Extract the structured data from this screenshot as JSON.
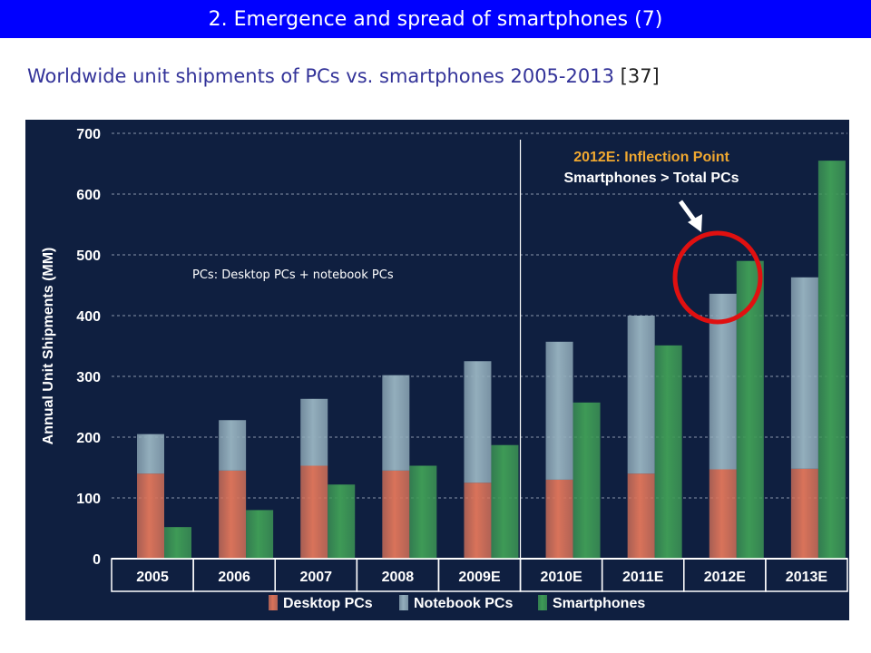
{
  "slide": {
    "title": "2. Emergence and spread of smartphones (7)",
    "subtitle": "Worldwide unit shipments of PCs vs. smartphones 2005-2013",
    "reference": "[37]"
  },
  "colors": {
    "title_bar": "#0000ff",
    "subtitle_text": "#333399",
    "chart_background": "#0f1f40",
    "desktop": "#d9735a",
    "notebook": "#93aebc",
    "smartphone": "#3e9a56",
    "annotation_orange": "#f0a830",
    "highlight_circle": "#e01010"
  },
  "chart_data": {
    "type": "bar",
    "stacked_pc_with_side_smartphone": true,
    "ylabel": "Annual Unit Shipments (MM)",
    "ylim": [
      0,
      700
    ],
    "yticks": [
      0,
      100,
      200,
      300,
      400,
      500,
      600,
      700
    ],
    "grid": true,
    "legend_position": "bottom",
    "categories": [
      "2005",
      "2006",
      "2007",
      "2008",
      "2009E",
      "2010E",
      "2011E",
      "2012E",
      "2013E"
    ],
    "series": [
      {
        "name": "Desktop PCs",
        "stack": "pc",
        "values": [
          140,
          145,
          153,
          145,
          125,
          130,
          140,
          147,
          148
        ]
      },
      {
        "name": "Notebook PCs",
        "stack": "pc",
        "values": [
          65,
          83,
          110,
          157,
          200,
          227,
          260,
          289,
          315
        ]
      },
      {
        "name": "Smartphones",
        "stack": "phone",
        "values": [
          52,
          80,
          122,
          153,
          187,
          257,
          351,
          490,
          655
        ]
      }
    ],
    "annotations": {
      "inflection_title": "2012E: Inflection Point",
      "inflection_sub": "Smartphones > Total PCs",
      "pc_note": "PCs: Desktop PCs + notebook PCs"
    }
  }
}
